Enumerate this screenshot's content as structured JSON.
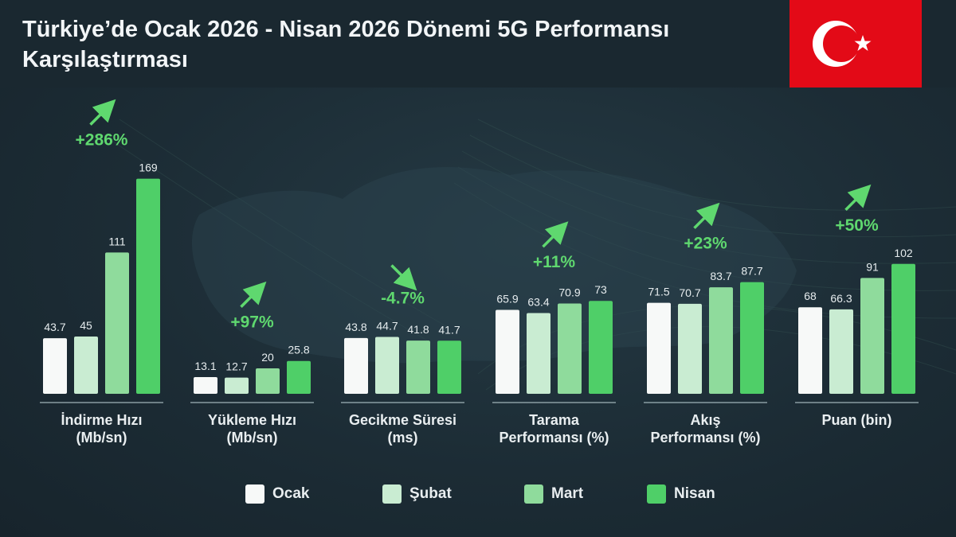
{
  "header": {
    "title": "Türkiye’de Ocak 2026 - Nisan 2026 Dönemi 5G Performansı Karşılaştırması"
  },
  "colors": {
    "Ocak": "#f7f9f8",
    "Şubat": "#c9ecd2",
    "Mart": "#8fdb9c",
    "Nisan": "#4fcf68",
    "accent": "#5fd86f",
    "flag_red": "#e30a17"
  },
  "chart_data": {
    "type": "bar",
    "title": "Türkiye’de Ocak 2026 - Nisan 2026 Dönemi 5G Performansı Karşılaştırması",
    "legend_placement": "bottom",
    "grid": false,
    "series_names": [
      "Ocak",
      "Şubat",
      "Mart",
      "Nisan"
    ],
    "groups": [
      {
        "label": "İndirme Hızı\n(Mb/sn)",
        "values": [
          43.7,
          45,
          111,
          169
        ],
        "value_labels": [
          "43.7",
          "45",
          "111",
          "169"
        ],
        "change": "+286%",
        "direction": "up"
      },
      {
        "label": "Yükleme Hızı\n(Mb/sn)",
        "values": [
          13.1,
          12.7,
          20,
          25.8
        ],
        "value_labels": [
          "13.1",
          "12.7",
          "20",
          "25.8"
        ],
        "change": "+97%",
        "direction": "up"
      },
      {
        "label": "Gecikme Süresi\n(ms)",
        "values": [
          43.8,
          44.7,
          41.8,
          41.7
        ],
        "value_labels": [
          "43.8",
          "44.7",
          "41.8",
          "41.7"
        ],
        "change": "-4.7%",
        "direction": "down"
      },
      {
        "label": "Tarama\nPerformansı (%)",
        "values": [
          65.9,
          63.4,
          70.9,
          73
        ],
        "value_labels": [
          "65.9",
          "63.4",
          "70.9",
          "73"
        ],
        "change": "+11%",
        "direction": "up"
      },
      {
        "label": "Akış\nPerformansı (%)",
        "values": [
          71.5,
          70.7,
          83.7,
          87.7
        ],
        "value_labels": [
          "71.5",
          "70.7",
          "83.7",
          "87.7"
        ],
        "change": "+23%",
        "direction": "up"
      },
      {
        "label": "Puan (bin)",
        "values": [
          68,
          66.3,
          91,
          102
        ],
        "value_labels": [
          "68",
          "66.3",
          "91",
          "102"
        ],
        "change": "+50%",
        "direction": "up"
      }
    ]
  },
  "legend": {
    "items": [
      {
        "label": "Ocak"
      },
      {
        "label": "Şubat"
      },
      {
        "label": "Mart"
      },
      {
        "label": "Nisan"
      }
    ]
  }
}
